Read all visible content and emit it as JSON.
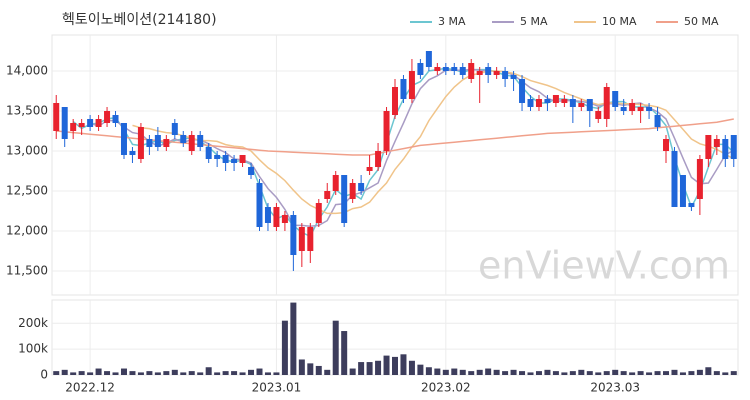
{
  "chart_data": {
    "type": "candlestick",
    "title": "헥토이노베이션(214180)",
    "watermark": "enViewV.com",
    "categories": [
      null,
      null,
      null,
      null,
      "2022.12",
      null,
      null,
      null,
      null,
      null,
      null,
      null,
      null,
      null,
      null,
      null,
      null,
      null,
      null,
      null,
      null,
      null,
      null,
      null,
      null,
      null,
      "2023.01",
      null,
      null,
      null,
      null,
      null,
      null,
      null,
      null,
      null,
      null,
      null,
      null,
      null,
      null,
      null,
      null,
      null,
      null,
      null,
      "2023.02",
      null,
      null,
      null,
      null,
      null,
      null,
      null,
      null,
      null,
      null,
      null,
      null,
      null,
      null,
      null,
      null,
      null,
      null,
      null,
      "2023.03",
      null,
      null,
      null,
      null,
      null,
      null,
      null,
      null,
      null,
      null,
      null,
      null,
      null,
      null
    ],
    "open": [
      13250,
      13550,
      13250,
      13300,
      13400,
      13300,
      13350,
      13450,
      13350,
      13000,
      12900,
      13150,
      13200,
      13050,
      13350,
      13200,
      13000,
      13200,
      13050,
      12950,
      12950,
      12900,
      12850,
      12800,
      12600,
      12300,
      12050,
      12100,
      12200,
      11750,
      11750,
      12100,
      12400,
      12500,
      12700,
      12400,
      12600,
      12750,
      12800,
      13000,
      13450,
      13900,
      13650,
      14100,
      14250,
      14000,
      14050,
      14050,
      14050,
      13900,
      13950,
      14050,
      13950,
      14000,
      13950,
      13900,
      13650,
      13550,
      13650,
      13600,
      13600,
      13650,
      13550,
      13650,
      13400,
      13400,
      13750,
      13550,
      13500,
      13500,
      13550,
      13450,
      13000,
      13000,
      12700,
      12350,
      12400,
      12900,
      13050,
      13150,
      13200
    ],
    "high": [
      13700,
      13550,
      13400,
      13400,
      13450,
      13450,
      13550,
      13500,
      13350,
      13050,
      13350,
      13200,
      13300,
      13200,
      13400,
      13250,
      13250,
      13250,
      13100,
      13000,
      13000,
      12950,
      12950,
      12850,
      12650,
      12350,
      12350,
      12250,
      12250,
      12100,
      12100,
      12400,
      12600,
      12750,
      12700,
      12650,
      12700,
      12950,
      13100,
      13550,
      13900,
      13950,
      14150,
      14150,
      14250,
      14100,
      14100,
      14100,
      14100,
      14150,
      14050,
      14100,
      14050,
      14050,
      14000,
      13950,
      13700,
      13700,
      13700,
      13700,
      13700,
      13700,
      13650,
      13650,
      13550,
      13850,
      13750,
      13650,
      13650,
      13600,
      13600,
      13550,
      13200,
      13050,
      12700,
      12350,
      12950,
      13200,
      13200,
      13200,
      13200
    ],
    "low": [
      13150,
      13050,
      13150,
      13200,
      13250,
      13250,
      13300,
      13300,
      12900,
      12850,
      12850,
      12950,
      13000,
      13000,
      13150,
      13050,
      12950,
      13000,
      12850,
      12800,
      12750,
      12750,
      12800,
      12650,
      12000,
      12000,
      12000,
      12000,
      11500,
      11550,
      11600,
      12050,
      12350,
      12450,
      12050,
      12350,
      12450,
      12700,
      12750,
      12950,
      13400,
      13600,
      13600,
      13900,
      14000,
      13950,
      13950,
      13950,
      13900,
      13850,
      13600,
      13850,
      13900,
      13800,
      13750,
      13500,
      13500,
      13500,
      13500,
      13550,
      13550,
      13350,
      13500,
      13300,
      13350,
      13300,
      13500,
      13450,
      13450,
      13350,
      13400,
      13250,
      12850,
      12300,
      12300,
      12250,
      12200,
      12800,
      12950,
      12800,
      12800
    ],
    "close": [
      13600,
      13150,
      13350,
      13350,
      13300,
      13400,
      13500,
      13350,
      12950,
      12950,
      13300,
      13050,
      13050,
      13150,
      13200,
      13100,
      13200,
      13050,
      12900,
      12900,
      12850,
      12850,
      12950,
      12700,
      12050,
      12100,
      12300,
      12200,
      11700,
      12050,
      12050,
      12350,
      12500,
      12700,
      12100,
      12600,
      12500,
      12800,
      13000,
      13500,
      13800,
      13650,
      14000,
      13950,
      14050,
      14050,
      14000,
      14000,
      13950,
      14100,
      14000,
      13950,
      14000,
      13900,
      13900,
      13600,
      13550,
      13650,
      13600,
      13700,
      13650,
      13550,
      13600,
      13500,
      13500,
      13800,
      13550,
      13500,
      13600,
      13550,
      13500,
      13300,
      13150,
      12300,
      12300,
      12300,
      12900,
      13200,
      13150,
      12900,
      12900
    ],
    "up_color": "#e8222e",
    "down_color": "#1f66d9",
    "ylim": [
      11200,
      14450
    ],
    "yticks": [
      {
        "value": 11500,
        "label": "11,500"
      },
      {
        "value": 12000,
        "label": "12,000"
      },
      {
        "value": 12500,
        "label": "12,500"
      },
      {
        "value": 13000,
        "label": "13,000"
      },
      {
        "value": 13500,
        "label": "13,500"
      },
      {
        "value": 14000,
        "label": "14,000"
      }
    ],
    "grid": true,
    "legend": "top-right",
    "series": [
      {
        "name": "3 MA",
        "color": "#6cc6d1",
        "values": [
          null,
          null,
          13367,
          13283,
          13333,
          13350,
          13400,
          13417,
          13267,
          13083,
          13067,
          13100,
          13133,
          13083,
          13133,
          13150,
          13167,
          13117,
          13050,
          12950,
          12883,
          12867,
          12883,
          12833,
          12567,
          12283,
          12150,
          12200,
          12067,
          11983,
          11933,
          12150,
          12300,
          12517,
          12433,
          12467,
          12400,
          12633,
          12767,
          13100,
          13433,
          13650,
          13817,
          13867,
          14000,
          14017,
          14033,
          14017,
          13983,
          14017,
          14017,
          14017,
          13983,
          13950,
          13933,
          13800,
          13683,
          13600,
          13600,
          13650,
          13650,
          13633,
          13600,
          13550,
          13533,
          13600,
          13617,
          13617,
          13550,
          13550,
          13550,
          13450,
          13317,
          12917,
          12583,
          12300,
          12500,
          12800,
          13083,
          13083,
          12983
        ]
      },
      {
        "name": "5 MA",
        "color": "#a99cc4",
        "values": [
          null,
          null,
          null,
          null,
          13350,
          13310,
          13380,
          13380,
          13300,
          13230,
          13210,
          13120,
          13060,
          13100,
          13150,
          13110,
          13140,
          13140,
          13090,
          13030,
          12980,
          12900,
          12890,
          12850,
          12680,
          12530,
          12420,
          12270,
          12070,
          12070,
          12060,
          12070,
          12130,
          12330,
          12340,
          12450,
          12480,
          12540,
          12600,
          12880,
          13120,
          13350,
          13590,
          13780,
          13890,
          13940,
          14010,
          14010,
          14010,
          14020,
          14010,
          14000,
          14000,
          13990,
          13950,
          13870,
          13790,
          13740,
          13660,
          13620,
          13630,
          13630,
          13620,
          13600,
          13560,
          13590,
          13590,
          13570,
          13590,
          13600,
          13540,
          13490,
          13400,
          13160,
          12910,
          12670,
          12590,
          12600,
          12770,
          12950,
          13010
        ]
      },
      {
        "name": "10 MA",
        "color": "#f0c48a",
        "values": [
          null,
          null,
          null,
          null,
          null,
          null,
          null,
          null,
          null,
          13320,
          13290,
          13280,
          13250,
          13230,
          13220,
          13190,
          13160,
          13130,
          13130,
          13120,
          13080,
          13060,
          13050,
          13000,
          12890,
          12790,
          12720,
          12630,
          12510,
          12400,
          12320,
          12270,
          12220,
          12220,
          12230,
          12280,
          12300,
          12360,
          12490,
          12600,
          12770,
          12900,
          13050,
          13180,
          13380,
          13530,
          13680,
          13800,
          13890,
          13950,
          13970,
          14000,
          14000,
          13990,
          13970,
          13930,
          13880,
          13850,
          13820,
          13780,
          13730,
          13690,
          13650,
          13610,
          13580,
          13600,
          13600,
          13590,
          13590,
          13580,
          13570,
          13550,
          13510,
          13390,
          13270,
          13150,
          13090,
          13060,
          13020,
          12960,
          12900
        ]
      },
      {
        "name": "50 MA",
        "color": "#f0a08a",
        "values": [
          13250,
          13240,
          13230,
          13220,
          13210,
          13200,
          13190,
          13180,
          13170,
          13160,
          13150,
          13140,
          13130,
          13120,
          13110,
          13100,
          13090,
          13080,
          13070,
          13060,
          13050,
          13040,
          13030,
          13020,
          13010,
          13000,
          12995,
          12990,
          12985,
          12980,
          12975,
          12970,
          12965,
          12960,
          12955,
          12950,
          12950,
          12950,
          12970,
          12990,
          13010,
          13030,
          13050,
          13070,
          13080,
          13090,
          13100,
          13110,
          13120,
          13130,
          13140,
          13150,
          13160,
          13170,
          13180,
          13190,
          13200,
          13210,
          13220,
          13225,
          13230,
          13235,
          13240,
          13245,
          13250,
          13255,
          13260,
          13265,
          13270,
          13275,
          13280,
          13290,
          13300,
          13310,
          13320,
          13330,
          13340,
          13350,
          13360,
          13380,
          13400
        ]
      }
    ],
    "volume": {
      "color": "#3d3d5c",
      "ylim": [
        0,
        290000
      ],
      "yticks": [
        0,
        {
          "value": 100000,
          "label": "100k"
        },
        {
          "value": 200000,
          "label": "200k"
        }
      ],
      "values": [
        15000,
        20000,
        10000,
        15000,
        10000,
        25000,
        15000,
        10000,
        25000,
        15000,
        10000,
        15000,
        10000,
        15000,
        20000,
        10000,
        15000,
        10000,
        30000,
        10000,
        15000,
        15000,
        10000,
        20000,
        25000,
        10000,
        10000,
        210000,
        280000,
        60000,
        45000,
        35000,
        20000,
        210000,
        170000,
        25000,
        50000,
        50000,
        55000,
        75000,
        70000,
        80000,
        55000,
        40000,
        30000,
        25000,
        20000,
        25000,
        20000,
        15000,
        20000,
        25000,
        20000,
        15000,
        20000,
        15000,
        10000,
        15000,
        20000,
        15000,
        10000,
        15000,
        20000,
        15000,
        10000,
        15000,
        20000,
        15000,
        10000,
        15000,
        10000,
        15000,
        15000,
        20000,
        10000,
        15000,
        20000,
        30000,
        15000,
        10000,
        15000
      ]
    }
  }
}
